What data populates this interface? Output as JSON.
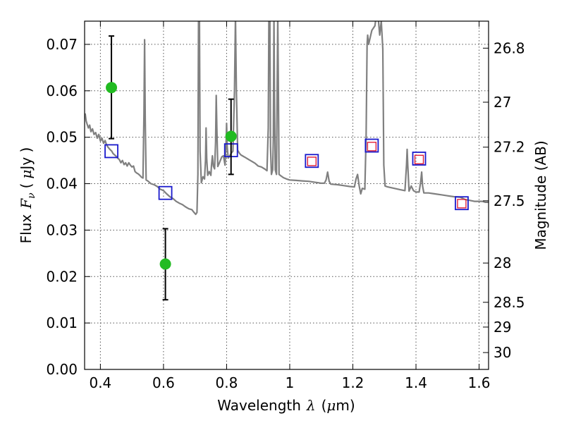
{
  "chart_data": {
    "type": "scatter",
    "xlabel_text": "Wavelength",
    "xlabel_symbol": "λ",
    "xlabel_unit_open": "(",
    "xlabel_unit_mu": "μ",
    "xlabel_unit_close": "m)",
    "ylabel_text": "Flux",
    "ylabel_symbol": "F",
    "ylabel_sub": "ν",
    "ylabel_unit_open": "(",
    "ylabel_unit_mu": "μ",
    "ylabel_unit_close": "Jy )",
    "y2label": "Magnitude (AB)",
    "xlim": [
      0.35,
      1.63
    ],
    "ylim": [
      0.0,
      0.075
    ],
    "grid": true,
    "x_ticks": [
      0.4,
      0.6,
      0.8,
      1.0,
      1.2,
      1.4,
      1.6
    ],
    "x_tick_labels": [
      "0.4",
      "0.6",
      "0.8",
      "1",
      "1.2",
      "1.4",
      "1.6"
    ],
    "y_ticks": [
      0.0,
      0.01,
      0.02,
      0.03,
      0.04,
      0.05,
      0.06,
      0.07
    ],
    "y_tick_labels": [
      "0.00",
      "0.01",
      "0.02",
      "0.03",
      "0.04",
      "0.05",
      "0.06",
      "0.07"
    ],
    "mag_ticks": [
      26.8,
      27,
      27.2,
      27.5,
      28,
      28.5,
      29,
      30
    ],
    "mag_tick_labels": [
      "26.8",
      "27",
      "27.2",
      "27.5",
      "28",
      "28.5",
      "29",
      "30"
    ],
    "colors": {
      "spectrum": "#808080",
      "observed": "#22bb22",
      "model_blue": "#1a1acc",
      "model_red": "#e0203a",
      "errorbar": "#000000",
      "grid": "#555555"
    },
    "observed_points": [
      {
        "x": 0.435,
        "y": 0.0607,
        "ylo": 0.0497,
        "yhi": 0.0718
      },
      {
        "x": 0.606,
        "y": 0.0227,
        "ylo": 0.015,
        "yhi": 0.0303
      },
      {
        "x": 0.814,
        "y": 0.0502,
        "ylo": 0.042,
        "yhi": 0.0582
      }
    ],
    "model_blue_squares": [
      {
        "x": 0.435,
        "y": 0.047
      },
      {
        "x": 0.606,
        "y": 0.038
      },
      {
        "x": 0.814,
        "y": 0.0472
      },
      {
        "x": 1.07,
        "y": 0.0449
      },
      {
        "x": 1.26,
        "y": 0.0482
      },
      {
        "x": 1.41,
        "y": 0.0454
      },
      {
        "x": 1.545,
        "y": 0.0358
      }
    ],
    "model_red_squares": [
      {
        "x": 1.07,
        "y": 0.0448
      },
      {
        "x": 1.26,
        "y": 0.048
      },
      {
        "x": 1.41,
        "y": 0.0452
      },
      {
        "x": 1.545,
        "y": 0.0357
      }
    ],
    "spectrum": [
      [
        0.35,
        0.0545
      ],
      [
        0.352,
        0.055
      ],
      [
        0.355,
        0.0535
      ],
      [
        0.358,
        0.0528
      ],
      [
        0.362,
        0.052
      ],
      [
        0.366,
        0.0526
      ],
      [
        0.37,
        0.0512
      ],
      [
        0.375,
        0.0518
      ],
      [
        0.38,
        0.0506
      ],
      [
        0.385,
        0.051
      ],
      [
        0.39,
        0.0498
      ],
      [
        0.395,
        0.0506
      ],
      [
        0.4,
        0.0492
      ],
      [
        0.405,
        0.0498
      ],
      [
        0.41,
        0.0487
      ],
      [
        0.415,
        0.0493
      ],
      [
        0.42,
        0.0483
      ],
      [
        0.425,
        0.0478
      ],
      [
        0.43,
        0.0474
      ],
      [
        0.436,
        0.047
      ],
      [
        0.44,
        0.0465
      ],
      [
        0.445,
        0.0462
      ],
      [
        0.45,
        0.0459
      ],
      [
        0.455,
        0.0455
      ],
      [
        0.46,
        0.0452
      ],
      [
        0.465,
        0.0445
      ],
      [
        0.47,
        0.045
      ],
      [
        0.475,
        0.0441
      ],
      [
        0.48,
        0.0445
      ],
      [
        0.485,
        0.0438
      ],
      [
        0.49,
        0.0445
      ],
      [
        0.495,
        0.044
      ],
      [
        0.5,
        0.0436
      ],
      [
        0.505,
        0.0438
      ],
      [
        0.51,
        0.0426
      ],
      [
        0.515,
        0.0423
      ],
      [
        0.52,
        0.0421
      ],
      [
        0.525,
        0.0418
      ],
      [
        0.53,
        0.0414
      ],
      [
        0.535,
        0.0412
      ],
      [
        0.538,
        0.055
      ],
      [
        0.54,
        0.071
      ],
      [
        0.542,
        0.054
      ],
      [
        0.545,
        0.0408
      ],
      [
        0.55,
        0.0406
      ],
      [
        0.56,
        0.04
      ],
      [
        0.57,
        0.0398
      ],
      [
        0.58,
        0.0394
      ],
      [
        0.59,
        0.0388
      ],
      [
        0.6,
        0.0385
      ],
      [
        0.61,
        0.0378
      ],
      [
        0.62,
        0.0372
      ],
      [
        0.63,
        0.0368
      ],
      [
        0.64,
        0.0362
      ],
      [
        0.65,
        0.0358
      ],
      [
        0.66,
        0.0355
      ],
      [
        0.67,
        0.035
      ],
      [
        0.68,
        0.0346
      ],
      [
        0.69,
        0.0344
      ],
      [
        0.697,
        0.0338
      ],
      [
        0.702,
        0.0334
      ],
      [
        0.706,
        0.0338
      ],
      [
        0.709,
        0.042
      ],
      [
        0.711,
        0.076
      ],
      [
        0.714,
        0.076
      ],
      [
        0.716,
        0.047
      ],
      [
        0.72,
        0.0402
      ],
      [
        0.725,
        0.0415
      ],
      [
        0.73,
        0.041
      ],
      [
        0.733,
        0.045
      ],
      [
        0.735,
        0.052
      ],
      [
        0.737,
        0.0455
      ],
      [
        0.74,
        0.0418
      ],
      [
        0.745,
        0.0426
      ],
      [
        0.75,
        0.0418
      ],
      [
        0.752,
        0.044
      ],
      [
        0.755,
        0.046
      ],
      [
        0.758,
        0.0438
      ],
      [
        0.762,
        0.0432
      ],
      [
        0.765,
        0.049
      ],
      [
        0.767,
        0.059
      ],
      [
        0.769,
        0.052
      ],
      [
        0.772,
        0.0437
      ],
      [
        0.776,
        0.0443
      ],
      [
        0.78,
        0.045
      ],
      [
        0.785,
        0.0458
      ],
      [
        0.79,
        0.046
      ],
      [
        0.795,
        0.044
      ],
      [
        0.798,
        0.048
      ],
      [
        0.8,
        0.053
      ],
      [
        0.802,
        0.048
      ],
      [
        0.805,
        0.0455
      ],
      [
        0.81,
        0.046
      ],
      [
        0.815,
        0.0466
      ],
      [
        0.82,
        0.047
      ],
      [
        0.825,
        0.06
      ],
      [
        0.828,
        0.076
      ],
      [
        0.831,
        0.06
      ],
      [
        0.835,
        0.0472
      ],
      [
        0.84,
        0.0466
      ],
      [
        0.845,
        0.0462
      ],
      [
        0.85,
        0.046
      ],
      [
        0.86,
        0.0456
      ],
      [
        0.87,
        0.0452
      ],
      [
        0.88,
        0.0448
      ],
      [
        0.89,
        0.0444
      ],
      [
        0.9,
        0.0438
      ],
      [
        0.91,
        0.0436
      ],
      [
        0.92,
        0.0432
      ],
      [
        0.928,
        0.0428
      ],
      [
        0.932,
        0.052
      ],
      [
        0.934,
        0.076
      ],
      [
        0.937,
        0.076
      ],
      [
        0.939,
        0.048
      ],
      [
        0.942,
        0.042
      ],
      [
        0.946,
        0.043
      ],
      [
        0.948,
        0.05
      ],
      [
        0.95,
        0.076
      ],
      [
        0.952,
        0.056
      ],
      [
        0.954,
        0.043
      ],
      [
        0.958,
        0.042
      ],
      [
        0.96,
        0.06
      ],
      [
        0.962,
        0.076
      ],
      [
        0.964,
        0.06
      ],
      [
        0.966,
        0.042
      ],
      [
        0.97,
        0.0418
      ],
      [
        0.98,
        0.0413
      ],
      [
        0.99,
        0.041
      ],
      [
        1.0,
        0.0408
      ],
      [
        1.02,
        0.0407
      ],
      [
        1.04,
        0.0406
      ],
      [
        1.06,
        0.0405
      ],
      [
        1.08,
        0.0403
      ],
      [
        1.09,
        0.0402
      ],
      [
        1.1,
        0.0401
      ],
      [
        1.11,
        0.0401
      ],
      [
        1.115,
        0.0408
      ],
      [
        1.12,
        0.0425
      ],
      [
        1.125,
        0.0405
      ],
      [
        1.13,
        0.0399
      ],
      [
        1.15,
        0.0398
      ],
      [
        1.17,
        0.0396
      ],
      [
        1.19,
        0.0394
      ],
      [
        1.205,
        0.0393
      ],
      [
        1.21,
        0.041
      ],
      [
        1.215,
        0.042
      ],
      [
        1.22,
        0.0395
      ],
      [
        1.225,
        0.0378
      ],
      [
        1.23,
        0.039
      ],
      [
        1.238,
        0.0388
      ],
      [
        1.242,
        0.05
      ],
      [
        1.245,
        0.07
      ],
      [
        1.247,
        0.072
      ],
      [
        1.25,
        0.07
      ],
      [
        1.255,
        0.0715
      ],
      [
        1.26,
        0.073
      ],
      [
        1.265,
        0.0735
      ],
      [
        1.27,
        0.074
      ],
      [
        1.274,
        0.076
      ],
      [
        1.28,
        0.076
      ],
      [
        1.285,
        0.072
      ],
      [
        1.29,
        0.075
      ],
      [
        1.295,
        0.069
      ],
      [
        1.298,
        0.044
      ],
      [
        1.302,
        0.0395
      ],
      [
        1.31,
        0.0393
      ],
      [
        1.33,
        0.039
      ],
      [
        1.35,
        0.0387
      ],
      [
        1.365,
        0.0385
      ],
      [
        1.37,
        0.044
      ],
      [
        1.372,
        0.0474
      ],
      [
        1.374,
        0.044
      ],
      [
        1.378,
        0.0384
      ],
      [
        1.385,
        0.0395
      ],
      [
        1.392,
        0.0385
      ],
      [
        1.4,
        0.0382
      ],
      [
        1.41,
        0.0382
      ],
      [
        1.415,
        0.0405
      ],
      [
        1.418,
        0.0425
      ],
      [
        1.421,
        0.0395
      ],
      [
        1.425,
        0.038
      ],
      [
        1.44,
        0.038
      ],
      [
        1.46,
        0.0378
      ],
      [
        1.48,
        0.0376
      ],
      [
        1.5,
        0.0374
      ],
      [
        1.52,
        0.0372
      ],
      [
        1.54,
        0.0371
      ],
      [
        1.555,
        0.0366
      ],
      [
        1.57,
        0.0364
      ],
      [
        1.585,
        0.0362
      ],
      [
        1.6,
        0.0362
      ],
      [
        1.61,
        0.0362
      ],
      [
        1.62,
        0.036
      ],
      [
        1.63,
        0.036
      ]
    ]
  }
}
